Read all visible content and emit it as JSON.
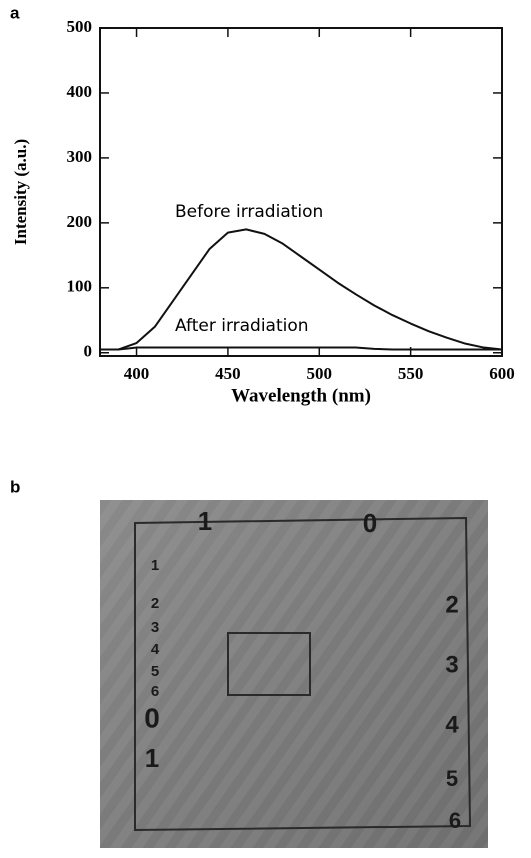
{
  "chart_data": {
    "type": "line",
    "x_label": "Wavelength (nm)",
    "y_label": "Intensity (a.u.)",
    "x": [
      380,
      390,
      400,
      410,
      420,
      430,
      440,
      450,
      460,
      470,
      480,
      490,
      500,
      510,
      520,
      530,
      540,
      550,
      560,
      570,
      580,
      590,
      600
    ],
    "series": [
      {
        "name": "Before irradiation",
        "color": "#111111",
        "values": [
          5,
          5,
          15,
          40,
          80,
          120,
          160,
          185,
          190,
          183,
          168,
          148,
          128,
          108,
          90,
          73,
          58,
          45,
          33,
          23,
          14,
          8,
          5
        ]
      },
      {
        "name": "After irradiation",
        "color": "#111111",
        "values": [
          5,
          5,
          8,
          8,
          8,
          8,
          8,
          8,
          8,
          8,
          8,
          8,
          8,
          8,
          8,
          6,
          5,
          5,
          5,
          5,
          5,
          5,
          5
        ]
      }
    ],
    "xlim": [
      380,
      600
    ],
    "xticks": [
      400,
      450,
      500,
      550,
      600
    ],
    "ylim": [
      -5,
      500
    ],
    "yticks": [
      0,
      100,
      200,
      300,
      400,
      500
    ]
  },
  "panel_labels": [
    "a",
    "b"
  ],
  "image_labels": [
    "1",
    "0",
    "1",
    "2",
    "3",
    "4",
    "5",
    "6",
    "2",
    "3",
    "4",
    "5",
    "6",
    "0",
    "1"
  ]
}
